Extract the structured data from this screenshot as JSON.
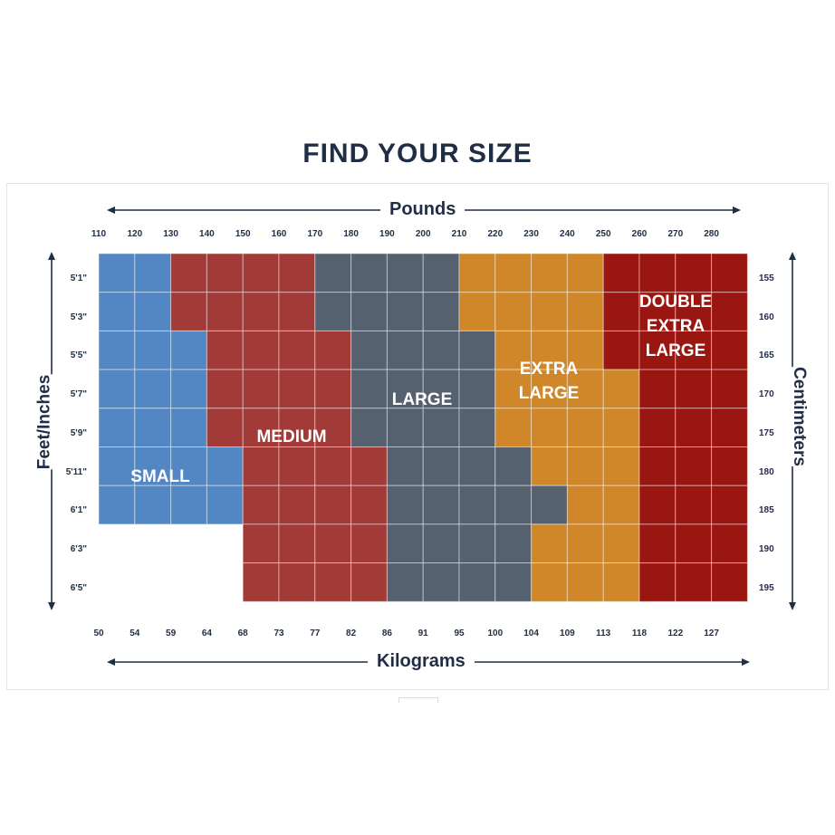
{
  "title": "FIND YOUR SIZE",
  "colors": {
    "small": "#5287c4",
    "medium": "#a23b37",
    "large": "#56616f",
    "extra_large": "#d08729",
    "double_extra_large": "#9a1711",
    "text": "#1f2d45"
  },
  "chart_data": {
    "type": "heatmap",
    "title": "FIND YOUR SIZE",
    "top_axis_label": "Pounds",
    "bottom_axis_label": "Kilograms",
    "left_axis_label": "Feet/Inches",
    "right_axis_label": "Centimeters",
    "pounds": [
      "110",
      "120",
      "130",
      "140",
      "150",
      "160",
      "170",
      "180",
      "190",
      "200",
      "210",
      "220",
      "230",
      "240",
      "250",
      "260",
      "270",
      "280"
    ],
    "kilograms": [
      "50",
      "54",
      "59",
      "64",
      "68",
      "73",
      "77",
      "82",
      "86",
      "91",
      "95",
      "100",
      "104",
      "109",
      "113",
      "118",
      "122",
      "127"
    ],
    "heights_ft_in": [
      "5'1\"",
      "5'3\"",
      "5'5\"",
      "5'7\"",
      "5'9\"",
      "5'11\"",
      "6'1\"",
      "6'3\"",
      "6'5\""
    ],
    "heights_cm": [
      "155",
      "160",
      "165",
      "170",
      "175",
      "180",
      "185",
      "190",
      "195"
    ],
    "legend": {
      "small": "SMALL",
      "medium": "MEDIUM",
      "large": "LARGE",
      "extra_large": "EXTRA\nLARGE",
      "double_extra_large": "DOUBLE\nEXTRA\nLARGE"
    },
    "size_grid": [
      [
        "S",
        "S",
        "M",
        "M",
        "M",
        "M",
        "L",
        "L",
        "L",
        "L",
        "XL",
        "XL",
        "XL",
        "XL",
        "XXL",
        "XXL",
        "XXL",
        "XXL"
      ],
      [
        "S",
        "S",
        "M",
        "M",
        "M",
        "M",
        "L",
        "L",
        "L",
        "L",
        "XL",
        "XL",
        "XL",
        "XL",
        "XXL",
        "XXL",
        "XXL",
        "XXL"
      ],
      [
        "S",
        "S",
        "S",
        "M",
        "M",
        "M",
        "M",
        "L",
        "L",
        "L",
        "L",
        "XL",
        "XL",
        "XL",
        "XXL",
        "XXL",
        "XXL",
        "XXL"
      ],
      [
        "S",
        "S",
        "S",
        "M",
        "M",
        "M",
        "M",
        "L",
        "L",
        "L",
        "L",
        "XL",
        "XL",
        "XL",
        "XL",
        "XXL",
        "XXL",
        "XXL"
      ],
      [
        "S",
        "S",
        "S",
        "M",
        "M",
        "M",
        "M",
        "L",
        "L",
        "L",
        "L",
        "XL",
        "XL",
        "XL",
        "XL",
        "XXL",
        "XXL",
        "XXL"
      ],
      [
        "S",
        "S",
        "S",
        "S",
        "M",
        "M",
        "M",
        "M",
        "L",
        "L",
        "L",
        "L",
        "XL",
        "XL",
        "XL",
        "XXL",
        "XXL",
        "XXL"
      ],
      [
        "S",
        "S",
        "S",
        "S",
        "M",
        "M",
        "M",
        "M",
        "L",
        "L",
        "L",
        "L",
        "L",
        "XL",
        "XL",
        "XXL",
        "XXL",
        "XXL"
      ],
      [
        "",
        "",
        "",
        "",
        "M",
        "M",
        "M",
        "M",
        "L",
        "L",
        "L",
        "L",
        "XL",
        "XL",
        "XL",
        "XXL",
        "XXL",
        "XXL"
      ],
      [
        "",
        "",
        "",
        "",
        "M",
        "M",
        "M",
        "M",
        "L",
        "L",
        "L",
        "L",
        "XL",
        "XL",
        "XL",
        "XXL",
        "XXL",
        "XXL"
      ]
    ]
  }
}
